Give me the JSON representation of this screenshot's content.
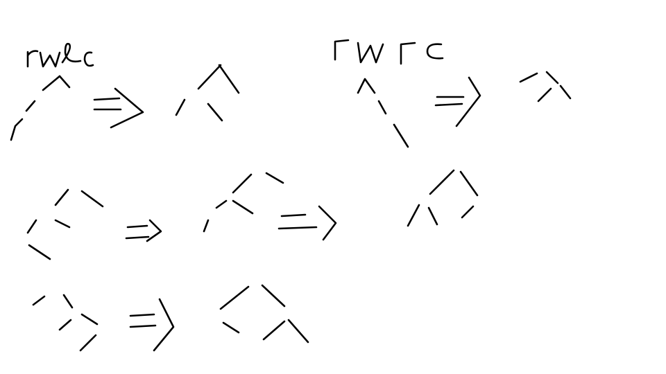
{
  "canvas": {
    "background": "#ffffff",
    "ink_color": "#000000"
  },
  "handwritten_labels": {
    "rotation_1": "rwlc",
    "rotation_2": "rwrc"
  },
  "figures": [
    {
      "id": "rwlc-before",
      "description_free": true
    },
    {
      "id": "rwlc-after",
      "description_free": true
    },
    {
      "id": "rwrc-before",
      "description_free": true
    },
    {
      "id": "rwrc-after",
      "description_free": true
    },
    {
      "id": "row2-step1",
      "description_free": true
    },
    {
      "id": "row2-step2",
      "description_free": true
    },
    {
      "id": "row2-step3",
      "description_free": true
    },
    {
      "id": "row3-before",
      "description_free": true
    },
    {
      "id": "row3-after",
      "description_free": true
    }
  ],
  "arrows": [
    "implies-arrow-1",
    "implies-arrow-2",
    "implies-arrow-3",
    "implies-arrow-4",
    "implies-arrow-5"
  ]
}
